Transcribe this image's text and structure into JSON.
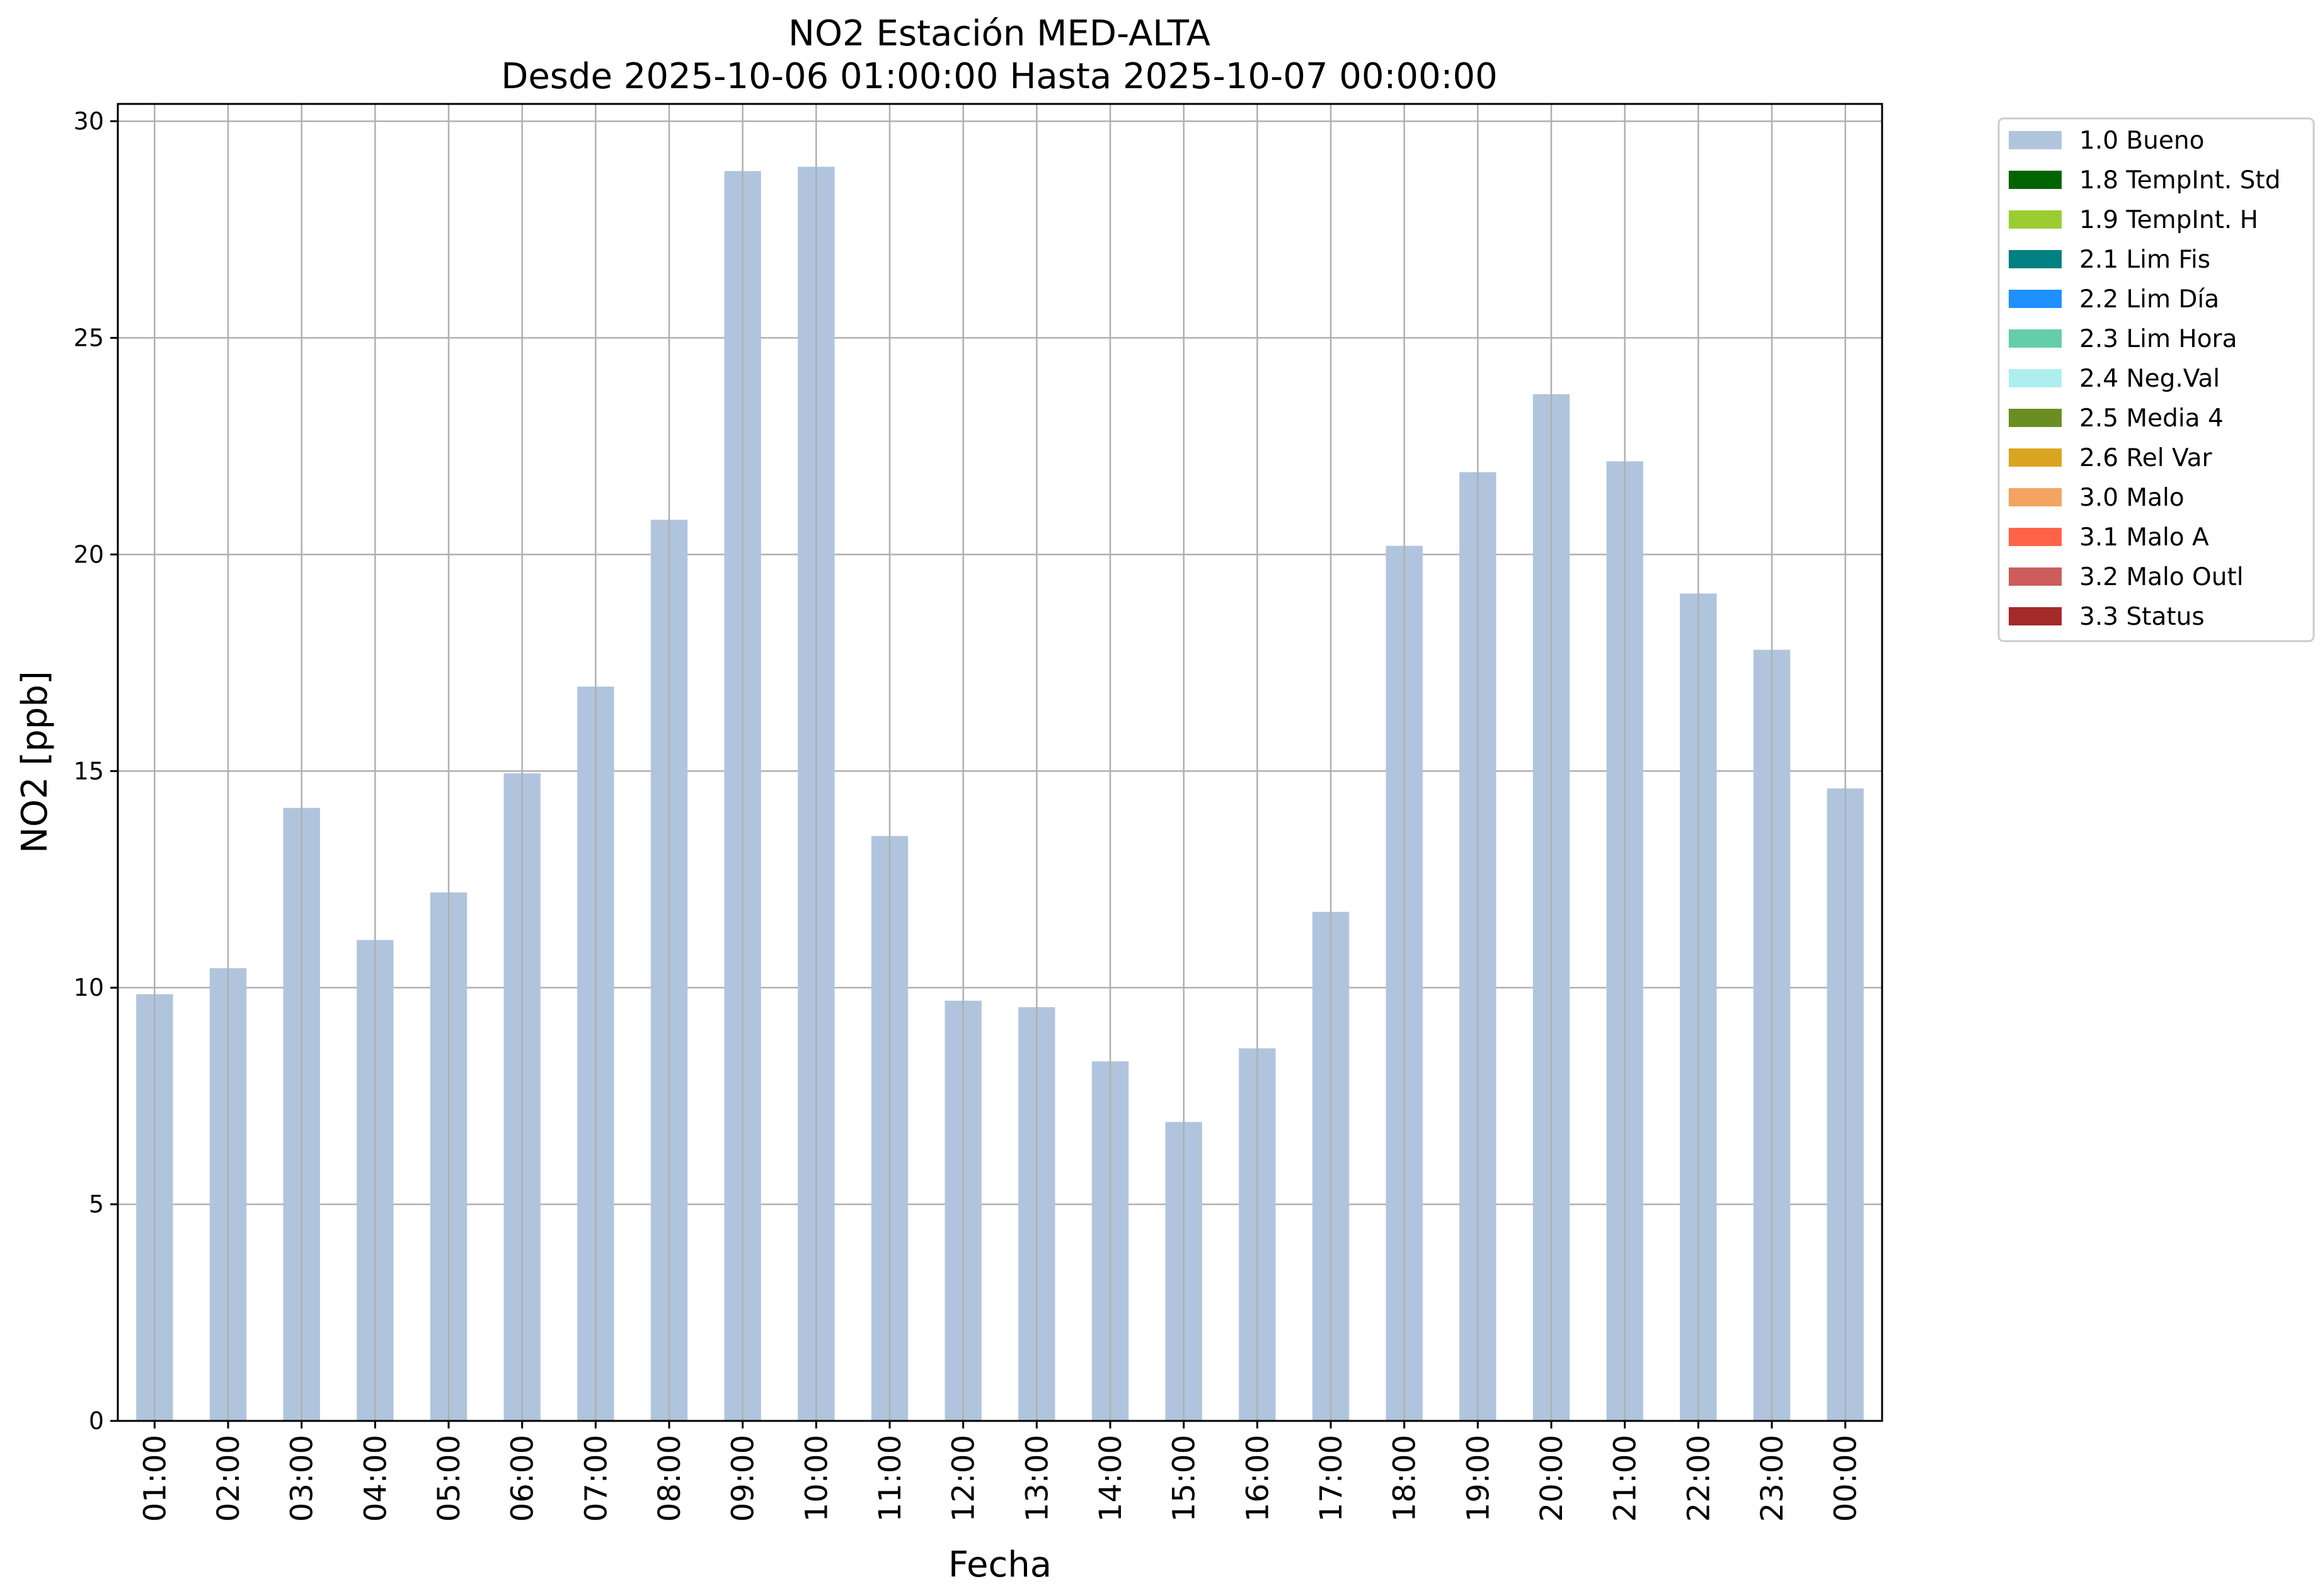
{
  "chart_data": {
    "type": "bar",
    "title_line1": "NO2 Estación MED-ALTA",
    "title_line2": "Desde 2025-10-06 01:00:00 Hasta 2025-10-07 00:00:00",
    "xlabel": "Fecha",
    "ylabel": "NO2 [ppb]",
    "ylim": [
      0,
      30.4
    ],
    "yticks": [
      0,
      5,
      10,
      15,
      20,
      25,
      30
    ],
    "grid": true,
    "legend_position": "outside-right-top",
    "categories": [
      "01:00",
      "02:00",
      "03:00",
      "04:00",
      "05:00",
      "06:00",
      "07:00",
      "08:00",
      "09:00",
      "10:00",
      "11:00",
      "12:00",
      "13:00",
      "14:00",
      "15:00",
      "16:00",
      "17:00",
      "18:00",
      "19:00",
      "20:00",
      "21:00",
      "22:00",
      "23:00",
      "00:00"
    ],
    "series": [
      {
        "name": "1.0 Bueno",
        "color": "#b0c4de",
        "values": [
          9.85,
          10.45,
          14.15,
          11.1,
          12.2,
          14.95,
          16.95,
          20.8,
          28.85,
          28.95,
          13.5,
          9.7,
          9.55,
          8.3,
          6.9,
          8.6,
          11.75,
          20.2,
          21.9,
          23.7,
          22.15,
          19.1,
          17.8,
          14.6
        ]
      }
    ],
    "legend": [
      {
        "label": "1.0 Bueno",
        "color": "#b0c4de"
      },
      {
        "label": "1.8 TempInt. Std",
        "color": "#006400"
      },
      {
        "label": "1.9 TempInt. H",
        "color": "#9acd32"
      },
      {
        "label": "2.1 Lim Fis",
        "color": "#008080"
      },
      {
        "label": "2.2 Lim Día",
        "color": "#1e90ff"
      },
      {
        "label": "2.3 Lim Hora",
        "color": "#66cdaa"
      },
      {
        "label": "2.4 Neg.Val",
        "color": "#afeeee"
      },
      {
        "label": "2.5 Media 4",
        "color": "#6b8e23"
      },
      {
        "label": "2.6 Rel Var",
        "color": "#daa520"
      },
      {
        "label": "3.0 Malo",
        "color": "#f4a460"
      },
      {
        "label": "3.1 Malo A",
        "color": "#ff6347"
      },
      {
        "label": "3.2 Malo Outl",
        "color": "#cd5c5c"
      },
      {
        "label": "3.3 Status",
        "color": "#a52a2a"
      }
    ]
  }
}
